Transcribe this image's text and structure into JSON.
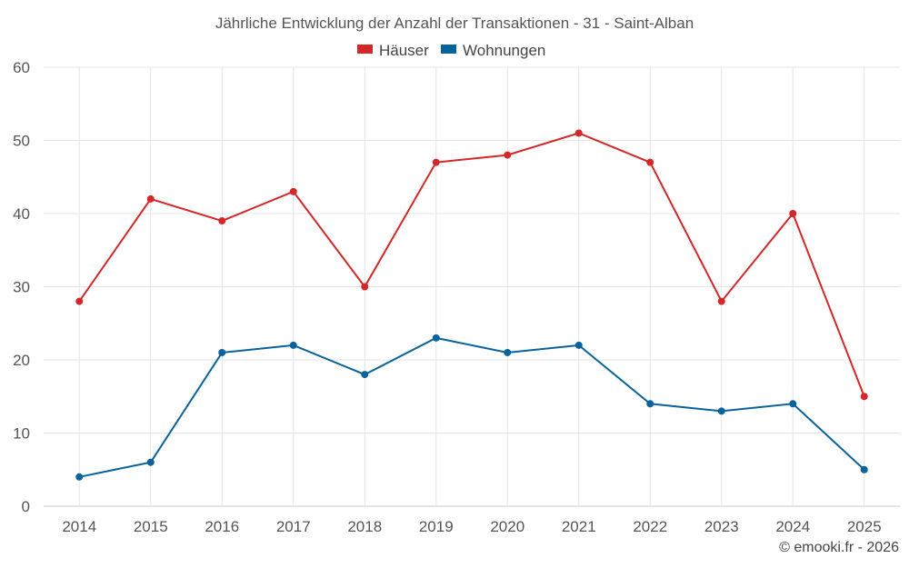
{
  "chart_data": {
    "type": "line",
    "title": "Jährliche Entwicklung der Anzahl der Transaktionen - 31 - Saint-Alban",
    "categories": [
      "2014",
      "2015",
      "2016",
      "2017",
      "2018",
      "2019",
      "2020",
      "2021",
      "2022",
      "2023",
      "2024",
      "2025"
    ],
    "series": [
      {
        "name": "Häuser",
        "color": "#d62728",
        "values": [
          28,
          42,
          39,
          43,
          30,
          47,
          48,
          51,
          47,
          28,
          40,
          15
        ]
      },
      {
        "name": "Wohnungen",
        "color": "#08639c",
        "values": [
          4,
          6,
          21,
          22,
          18,
          23,
          21,
          22,
          14,
          13,
          14,
          5
        ]
      }
    ],
    "ylim": [
      0,
      60
    ],
    "yticks": [
      0,
      10,
      20,
      30,
      40,
      50,
      60
    ],
    "xlabel": "",
    "ylabel": "",
    "grid": true,
    "legend_position": "top-center"
  },
  "credit": "© emooki.fr - 2026"
}
